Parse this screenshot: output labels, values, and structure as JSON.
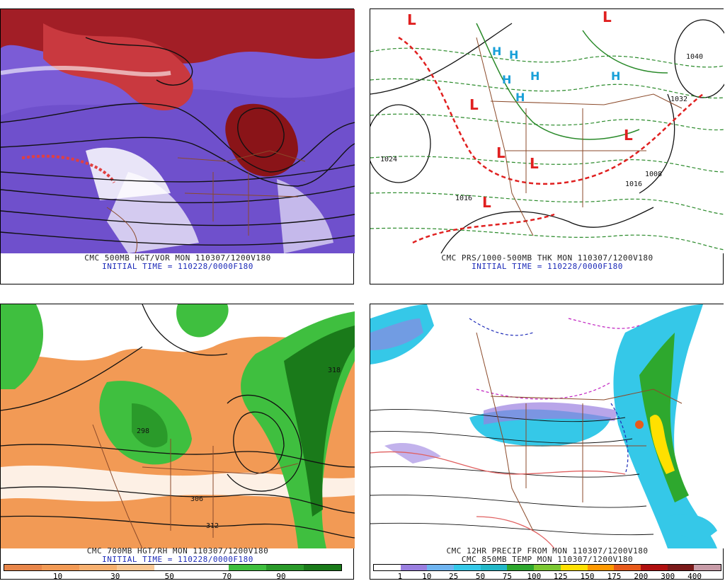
{
  "panels": [
    {
      "id": "p1",
      "caption_line1": "CMC 500MB HGT/VOR MON 110307/1200V180",
      "caption_line2": "INITIAL TIME = 110228/0000F180"
    },
    {
      "id": "p2",
      "caption_line1": "CMC PRS/1000-500MB THK MON 110307/1200V180",
      "caption_line2": "INITIAL TIME = 110228/0000F180",
      "labels": [
        "1040",
        "1032",
        "1024",
        "1016",
        "1008",
        "1016"
      ]
    },
    {
      "id": "p3",
      "caption_line1": "CMC 700MB HGT/RH MON 110307/1200V180",
      "caption_line2": "INITIAL TIME = 110228/0000F180",
      "labels": [
        "306",
        "312",
        "318",
        "298"
      ]
    },
    {
      "id": "p4",
      "caption_line1": "CMC 12HR PRECIP FROM MON 110307/1200V180",
      "caption_line2": "CMC 850MB TEMP MON 110307/1200V180"
    }
  ],
  "colorbar_rh": {
    "colors": [
      "#e8864a",
      "#f29a55",
      "#f7b070",
      "#fac896",
      "#ffffff",
      "#ffffff",
      "#3fbf3f",
      "#2a9a2a",
      "#1a7a1a"
    ],
    "ticks": [
      "10",
      "30",
      "50",
      "70",
      "90"
    ]
  },
  "colorbar_precip": {
    "colors": [
      "#ffffff",
      "#9a7fe0",
      "#6fb4f0",
      "#35c8e8",
      "#22b8c8",
      "#2ea82e",
      "#7cc832",
      "#ffe000",
      "#ff9900",
      "#e85a1a",
      "#b01010",
      "#7a1a1a",
      "#c89ca8"
    ],
    "ticks": [
      "1",
      "10",
      "25",
      "50",
      "75",
      "100",
      "125",
      "150",
      "175",
      "200",
      "300",
      "400"
    ]
  },
  "map_symbols": {
    "low": "L",
    "high": "H"
  },
  "colors": {
    "vorticity_purple": "#7b5cd6",
    "vorticity_red": "#b3222a",
    "height_line": "#111111",
    "border_brown": "#8b4a2a",
    "thickness_green": "#2a8a2a",
    "thickness_red": "#e02020",
    "high_blue": "#1aa0d8"
  }
}
